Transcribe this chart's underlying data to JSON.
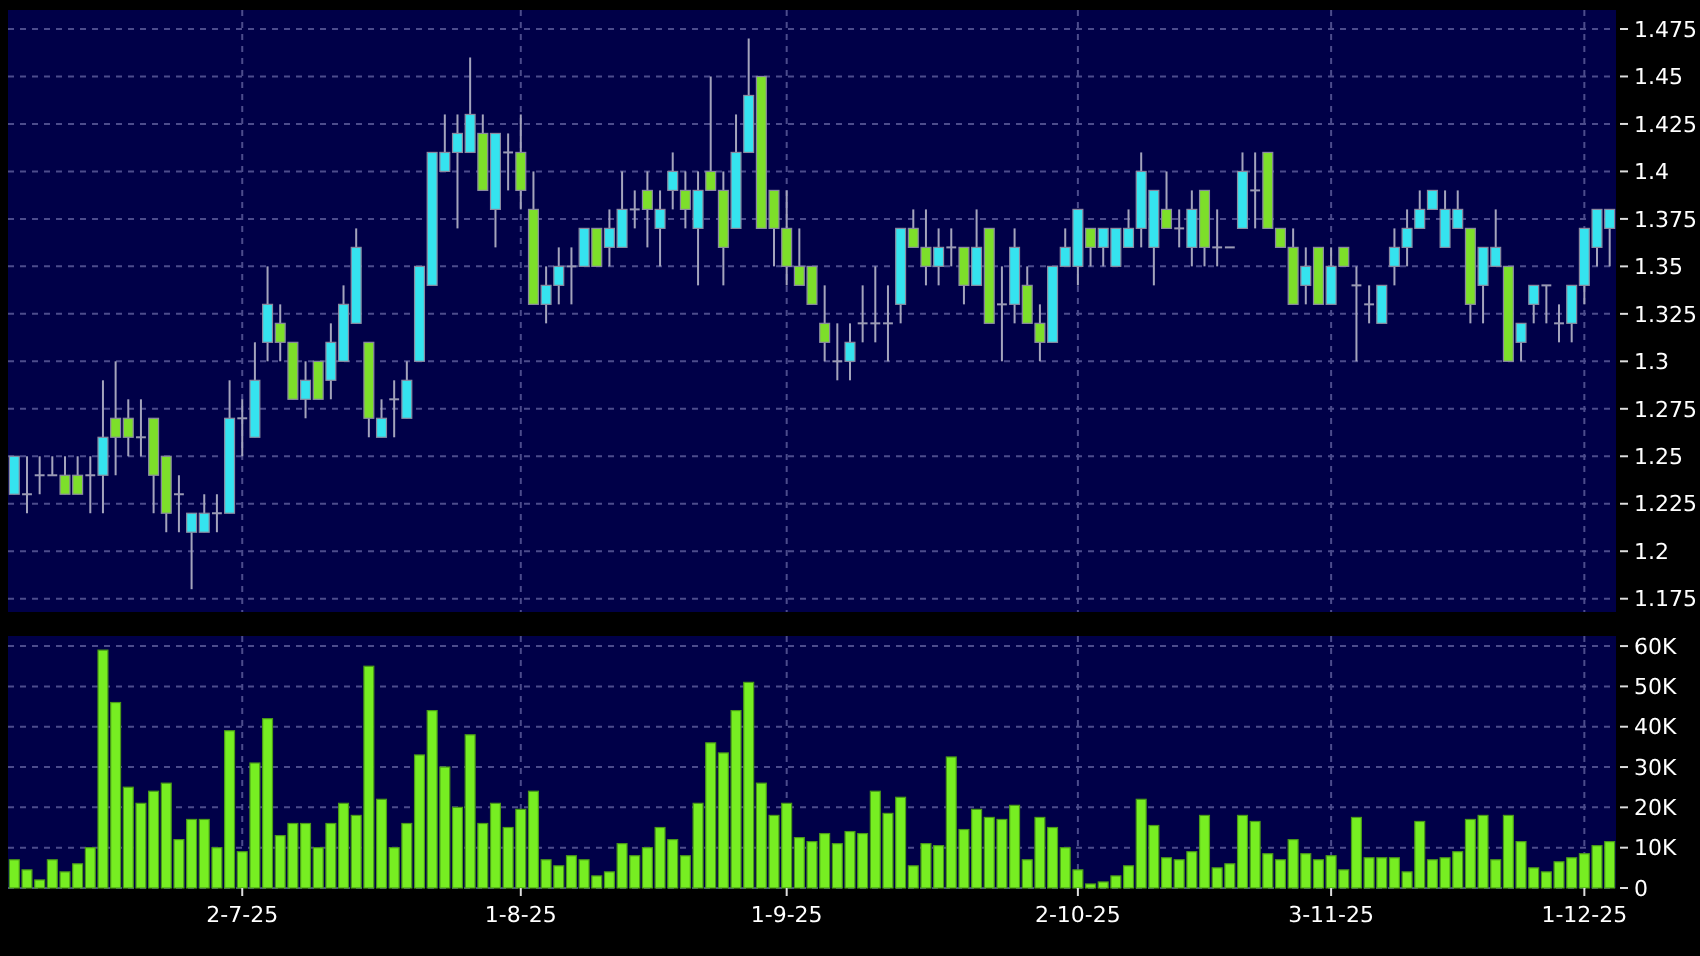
{
  "chart_data": [
    {
      "type": "candlestick",
      "grid": true,
      "tick_labels": "y",
      "categories": [
        null,
        null,
        null,
        null,
        null,
        null,
        null,
        null,
        null,
        null,
        null,
        null,
        null,
        null,
        null,
        null,
        null,
        null,
        null,
        null,
        null,
        null,
        null,
        null,
        null,
        null,
        null,
        null,
        null,
        null,
        null,
        null,
        null,
        null,
        null,
        null,
        null,
        null,
        null,
        null,
        null,
        null,
        null,
        null,
        null,
        null,
        null,
        null,
        null,
        null,
        null,
        null,
        null,
        null,
        null,
        null,
        null,
        null,
        null,
        null,
        null,
        null,
        null,
        null,
        null,
        null,
        null,
        null,
        null,
        null,
        null,
        null,
        null,
        null,
        null,
        null,
        null,
        null,
        null,
        null,
        null,
        null,
        null,
        null,
        null,
        null,
        null,
        null,
        null,
        null,
        null,
        null,
        null,
        null,
        null,
        null,
        null,
        null,
        null,
        null,
        null,
        null,
        null,
        null,
        null,
        null,
        null,
        null,
        null,
        null,
        null,
        null,
        null,
        null,
        null,
        null,
        null,
        null,
        null,
        null,
        null,
        null,
        null,
        null,
        null,
        null,
        null
      ],
      "ohlc": [
        [
          1.23,
          1.25,
          1.23,
          1.25
        ],
        [
          1.23,
          1.25,
          1.22,
          1.23
        ],
        [
          1.24,
          1.25,
          1.23,
          1.24
        ],
        [
          1.24,
          1.25,
          1.24,
          1.24
        ],
        [
          1.24,
          1.25,
          1.23,
          1.23
        ],
        [
          1.24,
          1.25,
          1.23,
          1.23
        ],
        [
          1.24,
          1.25,
          1.22,
          1.24
        ],
        [
          1.24,
          1.29,
          1.22,
          1.26
        ],
        [
          1.27,
          1.3,
          1.24,
          1.26
        ],
        [
          1.27,
          1.28,
          1.25,
          1.26
        ],
        [
          1.26,
          1.28,
          1.25,
          1.26
        ],
        [
          1.27,
          1.27,
          1.22,
          1.24
        ],
        [
          1.25,
          1.25,
          1.21,
          1.22
        ],
        [
          1.23,
          1.24,
          1.21,
          1.23
        ],
        [
          1.21,
          1.22,
          1.18,
          1.22
        ],
        [
          1.21,
          1.23,
          1.21,
          1.22
        ],
        [
          1.22,
          1.23,
          1.21,
          1.22
        ],
        [
          1.22,
          1.29,
          1.22,
          1.27
        ],
        [
          1.27,
          1.28,
          1.25,
          1.27
        ],
        [
          1.26,
          1.31,
          1.26,
          1.29
        ],
        [
          1.31,
          1.35,
          1.3,
          1.33
        ],
        [
          1.32,
          1.33,
          1.3,
          1.31
        ],
        [
          1.31,
          1.31,
          1.28,
          1.28
        ],
        [
          1.28,
          1.3,
          1.27,
          1.29
        ],
        [
          1.3,
          1.3,
          1.28,
          1.28
        ],
        [
          1.29,
          1.32,
          1.28,
          1.31
        ],
        [
          1.3,
          1.34,
          1.3,
          1.33
        ],
        [
          1.32,
          1.37,
          1.32,
          1.36
        ],
        [
          1.31,
          1.31,
          1.26,
          1.27
        ],
        [
          1.26,
          1.28,
          1.26,
          1.27
        ],
        [
          1.28,
          1.29,
          1.26,
          1.28
        ],
        [
          1.27,
          1.3,
          1.27,
          1.29
        ],
        [
          1.3,
          1.35,
          1.3,
          1.35
        ],
        [
          1.34,
          1.41,
          1.34,
          1.41
        ],
        [
          1.4,
          1.43,
          1.4,
          1.41
        ],
        [
          1.41,
          1.43,
          1.37,
          1.42
        ],
        [
          1.41,
          1.46,
          1.41,
          1.43
        ],
        [
          1.42,
          1.43,
          1.39,
          1.39
        ],
        [
          1.38,
          1.42,
          1.36,
          1.42
        ],
        [
          1.41,
          1.42,
          1.39,
          1.41
        ],
        [
          1.41,
          1.43,
          1.38,
          1.39
        ],
        [
          1.38,
          1.4,
          1.33,
          1.33
        ],
        [
          1.33,
          1.35,
          1.32,
          1.34
        ],
        [
          1.34,
          1.36,
          1.33,
          1.35
        ],
        [
          1.35,
          1.36,
          1.33,
          1.35
        ],
        [
          1.35,
          1.37,
          1.35,
          1.37
        ],
        [
          1.37,
          1.37,
          1.35,
          1.35
        ],
        [
          1.36,
          1.38,
          1.35,
          1.37
        ],
        [
          1.36,
          1.4,
          1.36,
          1.38
        ],
        [
          1.38,
          1.39,
          1.37,
          1.38
        ],
        [
          1.39,
          1.4,
          1.36,
          1.38
        ],
        [
          1.37,
          1.39,
          1.35,
          1.38
        ],
        [
          1.39,
          1.41,
          1.38,
          1.4
        ],
        [
          1.39,
          1.4,
          1.37,
          1.38
        ],
        [
          1.37,
          1.4,
          1.34,
          1.39
        ],
        [
          1.4,
          1.45,
          1.39,
          1.39
        ],
        [
          1.39,
          1.4,
          1.34,
          1.36
        ],
        [
          1.37,
          1.43,
          1.37,
          1.41
        ],
        [
          1.41,
          1.47,
          1.41,
          1.44
        ],
        [
          1.45,
          1.45,
          1.37,
          1.37
        ],
        [
          1.39,
          1.39,
          1.35,
          1.37
        ],
        [
          1.37,
          1.39,
          1.34,
          1.35
        ],
        [
          1.35,
          1.37,
          1.34,
          1.34
        ],
        [
          1.35,
          1.35,
          1.33,
          1.33
        ],
        [
          1.32,
          1.34,
          1.3,
          1.31
        ],
        [
          1.3,
          1.32,
          1.29,
          1.3
        ],
        [
          1.3,
          1.32,
          1.29,
          1.31
        ],
        [
          1.32,
          1.34,
          1.31,
          1.32
        ],
        [
          1.32,
          1.35,
          1.31,
          1.32
        ],
        [
          1.32,
          1.34,
          1.3,
          1.32
        ],
        [
          1.33,
          1.37,
          1.32,
          1.37
        ],
        [
          1.37,
          1.38,
          1.36,
          1.36
        ],
        [
          1.36,
          1.38,
          1.34,
          1.35
        ],
        [
          1.35,
          1.37,
          1.34,
          1.36
        ],
        [
          1.36,
          1.37,
          1.35,
          1.36
        ],
        [
          1.36,
          1.36,
          1.33,
          1.34
        ],
        [
          1.34,
          1.38,
          1.34,
          1.36
        ],
        [
          1.37,
          1.37,
          1.32,
          1.32
        ],
        [
          1.33,
          1.35,
          1.3,
          1.33
        ],
        [
          1.33,
          1.37,
          1.32,
          1.36
        ],
        [
          1.34,
          1.35,
          1.32,
          1.32
        ],
        [
          1.32,
          1.33,
          1.3,
          1.31
        ],
        [
          1.31,
          1.35,
          1.31,
          1.35
        ],
        [
          1.35,
          1.37,
          1.35,
          1.36
        ],
        [
          1.35,
          1.38,
          1.34,
          1.38
        ],
        [
          1.37,
          1.37,
          1.35,
          1.36
        ],
        [
          1.36,
          1.37,
          1.35,
          1.37
        ],
        [
          1.35,
          1.37,
          1.35,
          1.37
        ],
        [
          1.36,
          1.38,
          1.36,
          1.37
        ],
        [
          1.37,
          1.41,
          1.36,
          1.4
        ],
        [
          1.36,
          1.39,
          1.34,
          1.39
        ],
        [
          1.38,
          1.4,
          1.37,
          1.37
        ],
        [
          1.37,
          1.38,
          1.36,
          1.37
        ],
        [
          1.36,
          1.39,
          1.35,
          1.38
        ],
        [
          1.39,
          1.39,
          1.35,
          1.36
        ],
        [
          1.36,
          1.38,
          1.35,
          1.36
        ],
        [
          1.36,
          1.36,
          1.36,
          1.36
        ],
        [
          1.37,
          1.41,
          1.37,
          1.4
        ],
        [
          1.39,
          1.41,
          1.37,
          1.39
        ],
        [
          1.41,
          1.41,
          1.37,
          1.37
        ],
        [
          1.37,
          1.37,
          1.36,
          1.36
        ],
        [
          1.36,
          1.37,
          1.33,
          1.33
        ],
        [
          1.34,
          1.36,
          1.33,
          1.35
        ],
        [
          1.36,
          1.36,
          1.33,
          1.33
        ],
        [
          1.33,
          1.36,
          1.33,
          1.35
        ],
        [
          1.36,
          1.36,
          1.35,
          1.35
        ],
        [
          1.34,
          1.35,
          1.3,
          1.34
        ],
        [
          1.33,
          1.34,
          1.32,
          1.33
        ],
        [
          1.32,
          1.34,
          1.32,
          1.34
        ],
        [
          1.35,
          1.37,
          1.34,
          1.36
        ],
        [
          1.36,
          1.38,
          1.35,
          1.37
        ],
        [
          1.37,
          1.39,
          1.37,
          1.38
        ],
        [
          1.38,
          1.39,
          1.38,
          1.39
        ],
        [
          1.36,
          1.39,
          1.36,
          1.38
        ],
        [
          1.37,
          1.39,
          1.37,
          1.38
        ],
        [
          1.37,
          1.37,
          1.32,
          1.33
        ],
        [
          1.34,
          1.36,
          1.32,
          1.36
        ],
        [
          1.35,
          1.38,
          1.35,
          1.36
        ],
        [
          1.35,
          1.35,
          1.3,
          1.3
        ],
        [
          1.31,
          1.32,
          1.3,
          1.32
        ],
        [
          1.33,
          1.34,
          1.32,
          1.34
        ],
        [
          1.34,
          1.34,
          1.32,
          1.34
        ],
        [
          1.32,
          1.33,
          1.31,
          1.32
        ],
        [
          1.32,
          1.34,
          1.31,
          1.34
        ],
        [
          1.34,
          1.37,
          1.33,
          1.37
        ],
        [
          1.36,
          1.38,
          1.35,
          1.38
        ],
        [
          1.37,
          1.38,
          1.35,
          1.38
        ]
      ],
      "colors": [
        "#35e3ef",
        "#9a9ab4",
        "#9a9ab4",
        "#9a9ab4",
        "#7ddf2a",
        "#7ddf2a",
        "#9a9ab4",
        "#35e3ef",
        "#7ddf2a",
        "#7ddf2a",
        "#9a9ab4",
        "#7ddf2a",
        "#7ddf2a",
        "#9a9ab4",
        "#35e3ef",
        "#35e3ef",
        "#9a9ab4",
        "#35e3ef",
        "#9a9ab4",
        "#35e3ef",
        "#35e3ef",
        "#7ddf2a",
        "#7ddf2a",
        "#35e3ef",
        "#7ddf2a",
        "#35e3ef",
        "#35e3ef",
        "#35e3ef",
        "#7ddf2a",
        "#35e3ef",
        "#9a9ab4",
        "#35e3ef",
        "#35e3ef",
        "#35e3ef",
        "#35e3ef",
        "#35e3ef",
        "#35e3ef",
        "#7ddf2a",
        "#35e3ef",
        "#9a9ab4",
        "#7ddf2a",
        "#7ddf2a",
        "#35e3ef",
        "#35e3ef",
        "#9a9ab4",
        "#35e3ef",
        "#7ddf2a",
        "#35e3ef",
        "#35e3ef",
        "#9a9ab4",
        "#7ddf2a",
        "#35e3ef",
        "#35e3ef",
        "#7ddf2a",
        "#35e3ef",
        "#7ddf2a",
        "#7ddf2a",
        "#35e3ef",
        "#35e3ef",
        "#7ddf2a",
        "#7ddf2a",
        "#7ddf2a",
        "#7ddf2a",
        "#7ddf2a",
        "#7ddf2a",
        "#9a9ab4",
        "#35e3ef",
        "#9a9ab4",
        "#9a9ab4",
        "#9a9ab4",
        "#35e3ef",
        "#7ddf2a",
        "#7ddf2a",
        "#35e3ef",
        "#9a9ab4",
        "#7ddf2a",
        "#35e3ef",
        "#7ddf2a",
        "#9a9ab4",
        "#35e3ef",
        "#7ddf2a",
        "#7ddf2a",
        "#35e3ef",
        "#35e3ef",
        "#35e3ef",
        "#7ddf2a",
        "#35e3ef",
        "#35e3ef",
        "#35e3ef",
        "#35e3ef",
        "#35e3ef",
        "#7ddf2a",
        "#9a9ab4",
        "#35e3ef",
        "#7ddf2a",
        "#9a9ab4",
        "#9a9ab4",
        "#35e3ef",
        "#9a9ab4",
        "#7ddf2a",
        "#7ddf2a",
        "#7ddf2a",
        "#35e3ef",
        "#7ddf2a",
        "#35e3ef",
        "#7ddf2a",
        "#9a9ab4",
        "#9a9ab4",
        "#35e3ef",
        "#35e3ef",
        "#35e3ef",
        "#35e3ef",
        "#35e3ef",
        "#35e3ef",
        "#35e3ef",
        "#7ddf2a",
        "#35e3ef",
        "#35e3ef",
        "#7ddf2a",
        "#35e3ef",
        "#35e3ef",
        "#9a9ab4",
        "#9a9ab4",
        "#35e3ef",
        "#35e3ef",
        "#35e3ef",
        "#35e3ef"
      ],
      "ylim": [
        1.168,
        1.485
      ],
      "yticks": [
        1.175,
        1.2,
        1.225,
        1.25,
        1.275,
        1.3,
        1.325,
        1.35,
        1.375,
        1.4,
        1.425,
        1.45,
        1.475
      ]
    },
    {
      "type": "bar",
      "grid": true,
      "color": "#77ee22",
      "categories": [
        null,
        null,
        null,
        null,
        null,
        null,
        null,
        null,
        null,
        null,
        null,
        null,
        null,
        null,
        null,
        null,
        null,
        null,
        "2-7-25",
        null,
        null,
        null,
        null,
        null,
        null,
        null,
        null,
        null,
        null,
        null,
        null,
        null,
        null,
        null,
        null,
        null,
        null,
        null,
        null,
        null,
        "1-8-25",
        null,
        null,
        null,
        null,
        null,
        null,
        null,
        null,
        null,
        null,
        null,
        null,
        null,
        null,
        null,
        null,
        null,
        null,
        null,
        null,
        "1-9-25",
        null,
        null,
        null,
        null,
        null,
        null,
        null,
        null,
        null,
        null,
        null,
        null,
        null,
        null,
        null,
        null,
        null,
        null,
        null,
        null,
        null,
        null,
        "2-10-25",
        null,
        null,
        null,
        null,
        null,
        null,
        null,
        null,
        null,
        null,
        null,
        null,
        null,
        null,
        null,
        null,
        null,
        null,
        null,
        "3-11-25",
        null,
        null,
        null,
        null,
        null,
        null,
        null,
        null,
        null,
        null,
        null,
        null,
        null,
        null,
        null,
        null,
        null,
        null,
        null,
        "1-12-25",
        null,
        null
      ],
      "values": [
        7000,
        4500,
        2000,
        7000,
        4000,
        6000,
        10000,
        59000,
        46000,
        25000,
        21000,
        24000,
        26000,
        12000,
        17000,
        17000,
        10000,
        39000,
        9000,
        31000,
        42000,
        13000,
        16000,
        16000,
        10000,
        16000,
        21000,
        18000,
        55000,
        22000,
        10000,
        16000,
        33000,
        44000,
        30000,
        20000,
        38000,
        16000,
        21000,
        15000,
        19500,
        24000,
        7000,
        5500,
        8000,
        7000,
        3000,
        4000,
        11000,
        8000,
        10000,
        15000,
        12000,
        8000,
        21000,
        36000,
        33500,
        44000,
        51000,
        26000,
        18000,
        21000,
        12500,
        11500,
        13500,
        11000,
        14000,
        13500,
        24000,
        18500,
        22500,
        5500,
        11000,
        10500,
        32500,
        14500,
        19500,
        17500,
        17000,
        20500,
        7000,
        17500,
        15000,
        10000,
        4500,
        1000,
        1500,
        3000,
        5500,
        22000,
        15500,
        7500,
        7000,
        9000,
        18000,
        5000,
        6000,
        18000,
        16500,
        8500,
        7000,
        12000,
        8500,
        7000,
        8000,
        4500,
        17500,
        7500,
        7500,
        7500,
        4000,
        16500,
        7000,
        7500,
        9000,
        17000,
        18000,
        7000,
        18000,
        11500,
        5000,
        4000,
        6500,
        7500,
        8500,
        10500,
        11500
      ],
      "ylim": [
        0,
        62500
      ],
      "yticks": [
        {
          "value": 0,
          "label": "0"
        },
        {
          "value": 10000,
          "label": "10K"
        },
        {
          "value": 20000,
          "label": "20K"
        },
        {
          "value": 30000,
          "label": "30K"
        },
        {
          "value": 40000,
          "label": "40K"
        },
        {
          "value": 50000,
          "label": "50K"
        },
        {
          "value": 60000,
          "label": "60K"
        }
      ]
    }
  ]
}
